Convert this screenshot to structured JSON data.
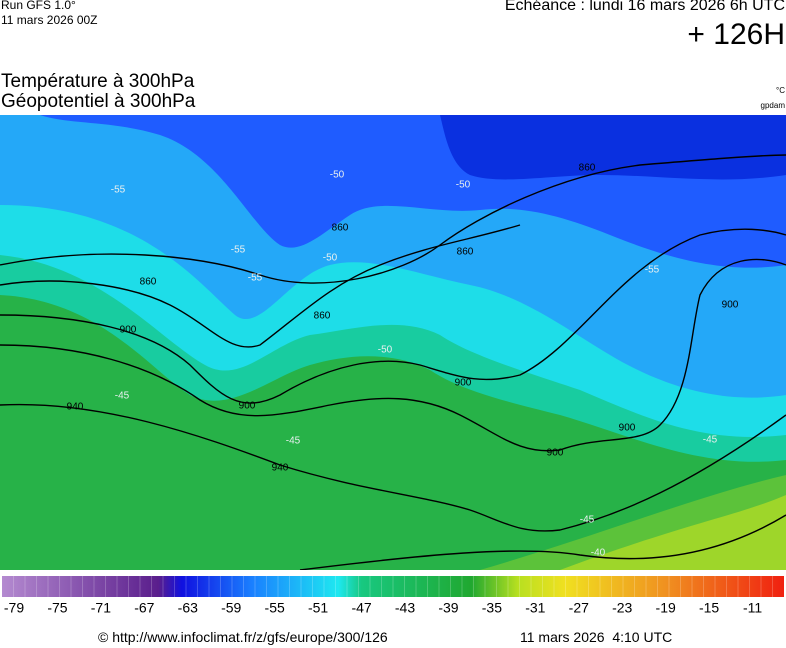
{
  "header": {
    "run": "Run GFS 1.0°",
    "run_date": "11 mars 2026 00Z",
    "valid": "Echéance : lundi 16 mars 2026 6h UTC",
    "lead": "+ 126H"
  },
  "titles": {
    "line1": "Température à 300hPa",
    "line2": "Géopotentiel à 300hPa",
    "unit_temp": "°C",
    "unit_geo": "gpdam"
  },
  "map": {
    "contour_labels": [
      860,
      860,
      860,
      860,
      860,
      900,
      900,
      900,
      900,
      900,
      900,
      940,
      940,
      -55,
      -55,
      -55,
      -55,
      -50,
      -50,
      -50,
      -50,
      -45,
      -45,
      -45,
      -45,
      -40
    ]
  },
  "legend": {
    "labels": [
      -79,
      -75,
      -71,
      -67,
      -63,
      -59,
      -55,
      -51,
      -47,
      -43,
      -39,
      -35,
      -31,
      -27,
      -23,
      -19,
      -15,
      -11
    ]
  },
  "footer": {
    "source": "© http://www.infoclimat.fr/z/gfs/europe/300/126",
    "generated": "11 mars 2026  4:10 UTC"
  }
}
